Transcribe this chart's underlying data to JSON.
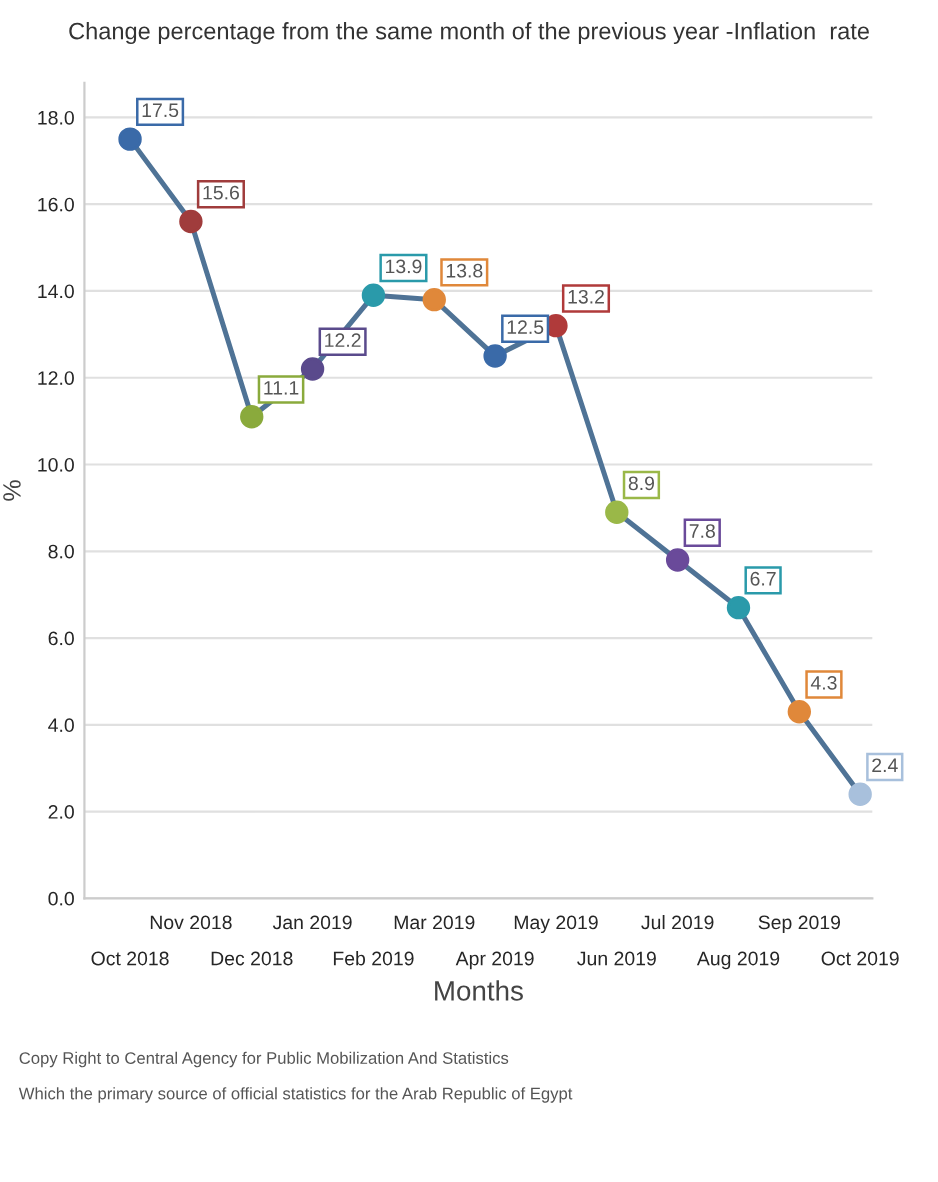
{
  "chart_data": {
    "type": "line",
    "title": "Change percentage from the same month of the previous year -Inflation  rate",
    "categories": [
      "Oct 2018",
      "Nov 2018",
      "Dec 2018",
      "Jan 2019",
      "Feb 2019",
      "Mar 2019",
      "Apr 2019",
      "May 2019",
      "Jun 2019",
      "Jul 2019",
      "Aug 2019",
      "Sep 2019",
      "Oct 2019"
    ],
    "series": [
      {
        "color": "#4f7396",
        "values": [
          17.5,
          15.6,
          11.1,
          12.2,
          13.9,
          13.8,
          12.5,
          13.2,
          8.9,
          7.8,
          6.7,
          4.3,
          2.4
        ],
        "colors": [
          "#3a6aa8",
          "#a03c3c",
          "#8aaa3c",
          "#5a4a8c",
          "#2a9aaa",
          "#e0883a",
          "#3a6aa8",
          "#b03a3a",
          "#9ab848",
          "#6a4a9a",
          "#2a9aaa",
          "#e0883a",
          "#a8c0dc"
        ]
      }
    ],
    "xlabel": "Months",
    "ylabel": "%",
    "ylim": [
      0,
      18.8
    ],
    "yticks": [
      {
        "value": 0,
        "label": "0.0"
      },
      {
        "value": 2,
        "label": "2.0"
      },
      {
        "value": 4,
        "label": "4.0"
      },
      {
        "value": 6,
        "label": "6.0"
      },
      {
        "value": 8,
        "label": "8.0"
      },
      {
        "value": 10,
        "label": "10.0"
      },
      {
        "value": 12,
        "label": "12.0"
      },
      {
        "value": 14,
        "label": "14.0"
      },
      {
        "value": 16,
        "label": "16.0"
      },
      {
        "value": 18,
        "label": "18.0"
      }
    ],
    "grid": "y",
    "legend": false,
    "marker": "circle",
    "line_style": "solid",
    "data_labels": true,
    "annotations": [
      "Copy Right to Central Agency for Public Mobilization And Statistics",
      "Which the primary source of official statistics for the Arab Republic of Egypt"
    ]
  }
}
